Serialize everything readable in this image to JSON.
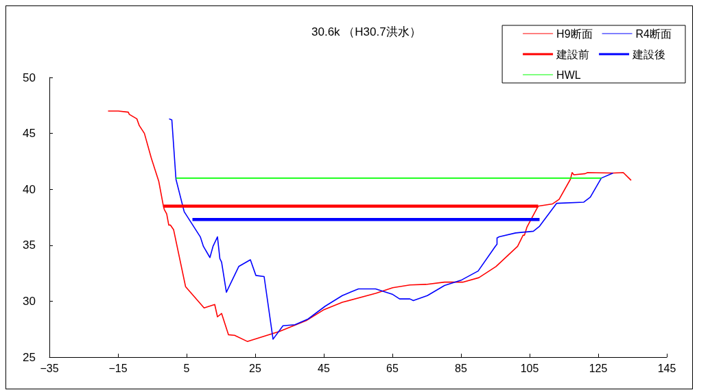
{
  "chart_data": {
    "type": "line",
    "title": "30.6k （H30.7洪水）",
    "xlim": [
      -35,
      145
    ],
    "xticks": [
      {
        "value": -35,
        "label": "−35"
      },
      {
        "value": -15,
        "label": "−15"
      },
      5,
      25,
      45,
      65,
      85,
      105,
      125,
      145
    ],
    "ylim": [
      25,
      50
    ],
    "yticks": [
      25,
      30,
      35,
      40,
      45,
      50
    ],
    "grid": false,
    "legend": "top right",
    "marker": "none",
    "line_style": "solid",
    "series": [
      {
        "name": "H9断面",
        "color": "#ff0000",
        "x": [
          -17.9,
          -14.9,
          -12.0,
          -11.7,
          -9.5,
          -8.8,
          -7.3,
          -5.3,
          -3.1,
          -1.7,
          -1.5,
          -0.8,
          -0.2,
          0.3,
          1.2,
          4.7,
          10.1,
          13.2,
          14.0,
          15.2,
          17.2,
          19.0,
          22.7,
          32.1,
          40.1,
          45.1,
          50.4,
          60.1,
          65.1,
          70.1,
          74.8,
          80.2,
          85.5,
          90.2,
          95.2,
          101.5,
          103.1,
          103.5,
          104.2,
          107.5,
          111.7,
          113.6,
          116.9,
          117.4,
          117.9,
          121.2,
          121.9,
          129.3,
          132.3,
          134.6
        ],
        "values": [
          47.0,
          47.0,
          46.9,
          46.7,
          46.3,
          45.7,
          45.0,
          42.8,
          40.7,
          38.4,
          38.2,
          37.8,
          36.8,
          36.8,
          36.4,
          31.3,
          29.4,
          29.7,
          28.6,
          28.9,
          27.0,
          26.95,
          26.4,
          27.3,
          28.3,
          29.25,
          29.9,
          30.7,
          31.2,
          31.45,
          31.5,
          31.7,
          31.7,
          32.1,
          33.1,
          34.9,
          35.9,
          35.9,
          36.6,
          38.5,
          38.7,
          39.1,
          40.9,
          41.5,
          41.3,
          41.4,
          41.5,
          41.45,
          41.5,
          40.8
        ]
      },
      {
        "name": "R4断面",
        "color": "#0000ff",
        "x": [
          -0.1,
          0.7,
          1.9,
          4.3,
          9.0,
          9.9,
          11.8,
          12.7,
          14.0,
          14.7,
          15.2,
          16.6,
          20.2,
          23.6,
          25.2,
          27.6,
          30.2,
          33.1,
          36.6,
          40.4,
          45.4,
          50.4,
          55.1,
          60.1,
          65.1,
          67.1,
          70.1,
          71.1,
          75.2,
          80.2,
          85.2,
          90.0,
          95.0,
          95.5,
          95.5,
          96.1,
          100.9,
          106.1,
          107.9,
          112.9,
          120.8,
          122.7,
          125.9,
          129.3
        ],
        "values": [
          46.3,
          46.2,
          40.9,
          38.0,
          35.75,
          34.9,
          33.9,
          34.9,
          35.75,
          33.8,
          33.5,
          30.8,
          33.1,
          33.7,
          32.3,
          32.2,
          26.6,
          27.8,
          27.9,
          28.4,
          29.55,
          30.5,
          31.1,
          31.1,
          30.6,
          30.2,
          30.2,
          30.05,
          30.5,
          31.4,
          31.9,
          32.7,
          34.9,
          35.1,
          35.65,
          35.75,
          36.1,
          36.25,
          36.7,
          38.75,
          38.85,
          39.3,
          41.0,
          41.45
        ]
      },
      {
        "name": "建設前",
        "color": "#ff0000",
        "x": [
          -1.7,
          107.5
        ],
        "values": [
          38.5,
          38.5
        ]
      },
      {
        "name": "建設後",
        "color": "#0000ff",
        "x": [
          6.7,
          107.9
        ],
        "values": [
          37.3,
          37.3
        ]
      },
      {
        "name": "HWL",
        "color": "#00ff00",
        "x": [
          1.9,
          125.9
        ],
        "values": [
          41.0,
          41.0
        ]
      }
    ]
  }
}
